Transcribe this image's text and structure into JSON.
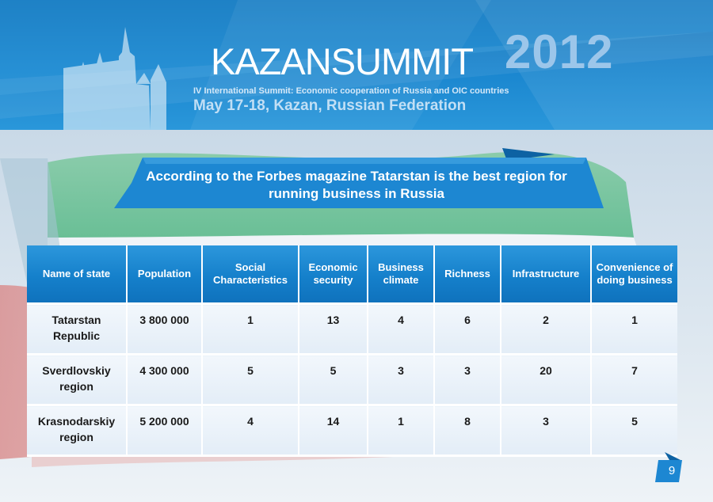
{
  "header": {
    "title": "KAZANSUMMIT",
    "year": "2012",
    "subtitle": "IV International Summit: Economic cooperation of Russia and OIC countries",
    "dateline": "May 17-18, Kazan, Russian Federation"
  },
  "banner": {
    "text": "According to the Forbes magazine Tatarstan is the best region for running business in Russia"
  },
  "table": {
    "columns": [
      "Name of state",
      "Population",
      "Social Characteristics",
      "Economic security",
      "Business climate",
      "Richness",
      "Infrastructure",
      "Convenience of doing business"
    ],
    "rows": [
      [
        "Tatarstan Republic",
        "3 800 000",
        "1",
        "13",
        "4",
        "6",
        "2",
        "1"
      ],
      [
        "Sverdlovskiy region",
        "4 300 000",
        "5",
        "5",
        "3",
        "3",
        "20",
        "7"
      ],
      [
        "Krasnodarskiy region",
        "5 200 000",
        "4",
        "14",
        "1",
        "8",
        "3",
        "5"
      ]
    ]
  },
  "page_number": "9",
  "colors": {
    "header_blue": "#1580cb",
    "ribbon_blue": "#1d87d2",
    "cell_bg": "#e8f0f8",
    "flag_green": "#43b36d",
    "flag_red": "#d94a4a"
  }
}
